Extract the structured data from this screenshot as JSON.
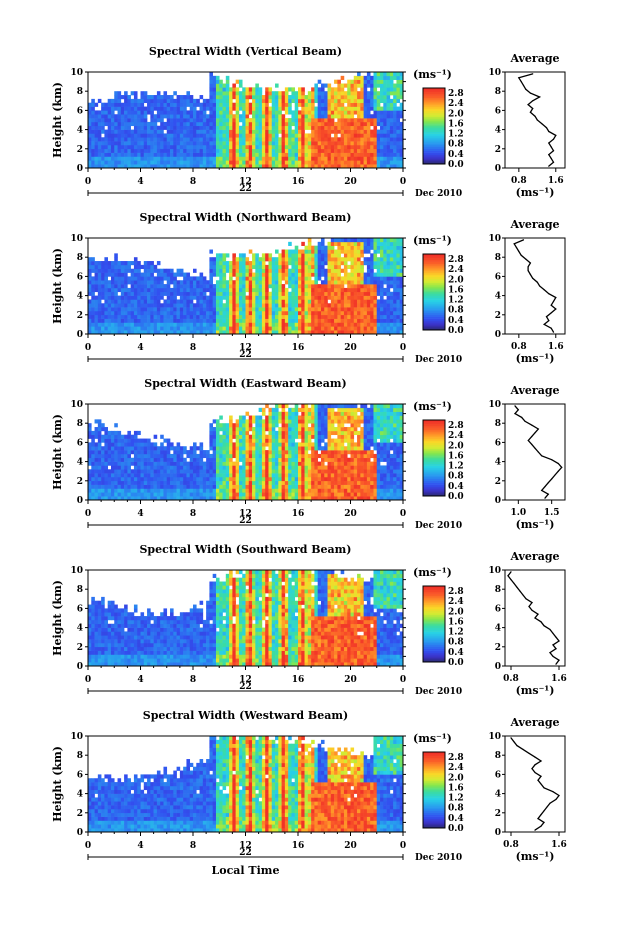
{
  "chart_data": [
    {
      "type": "heatmap",
      "title": "Spectral Width (Vertical Beam)",
      "ylabel": "Height (km)",
      "ylim": [
        0,
        10
      ],
      "xlim": [
        0,
        24
      ],
      "x_ticks": [
        "0",
        "4",
        "8",
        "12",
        "16",
        "20",
        "0"
      ],
      "y_ticks": [
        "0",
        "2",
        "4",
        "6",
        "8",
        "10"
      ],
      "date_label": "22",
      "month_label": "Dec 2010",
      "colorbar": {
        "unit": "(ms⁻¹)",
        "ticks": [
          "0.0",
          "0.4",
          "0.8",
          "1.2",
          "1.6",
          "2.0",
          "2.4",
          "2.8"
        ],
        "range": [
          0,
          3.0
        ]
      },
      "average": {
        "title": "Average",
        "xlabel": "(ms⁻¹)",
        "x_ticks": [
          "0.8",
          "1.6"
        ],
        "xlim": [
          0.5,
          1.8
        ],
        "heights": [
          0.2,
          0.6,
          1.0,
          1.4,
          1.8,
          2.2,
          2.6,
          3.0,
          3.4,
          3.8,
          4.2,
          4.6,
          5.0,
          5.4,
          5.8,
          6.2,
          6.6,
          7.0,
          7.4,
          7.8,
          8.2,
          8.6,
          9.0,
          9.4,
          9.8
        ],
        "values": [
          1.45,
          1.55,
          1.5,
          1.45,
          1.55,
          1.5,
          1.45,
          1.55,
          1.6,
          1.45,
          1.4,
          1.3,
          1.2,
          1.15,
          1.05,
          1.1,
          1.0,
          1.1,
          1.25,
          1.05,
          0.95,
          0.9,
          0.85,
          0.8,
          1.1
        ]
      }
    },
    {
      "type": "heatmap",
      "title": "Spectral Width (Northward Beam)",
      "ylabel": "Height (km)",
      "ylim": [
        0,
        10
      ],
      "xlim": [
        0,
        24
      ],
      "x_ticks": [
        "0",
        "4",
        "8",
        "12",
        "16",
        "20",
        "0"
      ],
      "y_ticks": [
        "0",
        "2",
        "4",
        "6",
        "8",
        "10"
      ],
      "date_label": "22",
      "month_label": "Dec 2010",
      "colorbar": {
        "unit": "(ms⁻¹)",
        "ticks": [
          "0.0",
          "0.4",
          "0.8",
          "1.2",
          "1.6",
          "2.0",
          "2.4",
          "2.8"
        ],
        "range": [
          0,
          3.0
        ]
      },
      "average": {
        "title": "Average",
        "xlabel": "(ms⁻¹)",
        "x_ticks": [
          "0.8",
          "1.6"
        ],
        "xlim": [
          0.5,
          1.8
        ],
        "heights": [
          0.2,
          0.6,
          1.0,
          1.4,
          1.8,
          2.2,
          2.6,
          3.0,
          3.4,
          3.8,
          4.2,
          4.6,
          5.0,
          5.4,
          5.8,
          6.2,
          6.6,
          7.0,
          7.4,
          7.8,
          8.2,
          8.6,
          9.0,
          9.4,
          9.8
        ],
        "values": [
          1.55,
          1.5,
          1.35,
          1.45,
          1.4,
          1.5,
          1.6,
          1.5,
          1.55,
          1.6,
          1.45,
          1.35,
          1.25,
          1.2,
          1.1,
          1.05,
          1.0,
          1.0,
          1.05,
          0.95,
          0.85,
          0.8,
          0.75,
          0.7,
          0.9
        ]
      }
    },
    {
      "type": "heatmap",
      "title": "Spectral Width (Eastward Beam)",
      "ylabel": "Height (km)",
      "ylim": [
        0,
        10
      ],
      "xlim": [
        0,
        24
      ],
      "x_ticks": [
        "0",
        "4",
        "8",
        "12",
        "16",
        "20",
        "0"
      ],
      "y_ticks": [
        "0",
        "2",
        "4",
        "6",
        "8",
        "10"
      ],
      "date_label": "22",
      "month_label": "Dec 2010",
      "colorbar": {
        "unit": "(ms⁻¹)",
        "ticks": [
          "0.0",
          "0.4",
          "0.8",
          "1.2",
          "1.6",
          "2.0",
          "2.4",
          "2.8"
        ],
        "range": [
          0,
          3.0
        ]
      },
      "average": {
        "title": "Average",
        "xlabel": "(ms⁻¹)",
        "x_ticks": [
          "1.0",
          "1.5"
        ],
        "xlim": [
          0.8,
          1.7
        ],
        "heights": [
          0.2,
          0.6,
          1.0,
          1.4,
          1.8,
          2.2,
          2.6,
          3.0,
          3.4,
          3.8,
          4.2,
          4.6,
          5.0,
          5.4,
          5.8,
          6.2,
          6.6,
          7.0,
          7.4,
          7.8,
          8.2,
          8.6,
          9.0,
          9.4,
          9.8
        ],
        "values": [
          1.4,
          1.45,
          1.35,
          1.4,
          1.45,
          1.5,
          1.55,
          1.6,
          1.65,
          1.6,
          1.5,
          1.35,
          1.3,
          1.25,
          1.2,
          1.15,
          1.2,
          1.25,
          1.3,
          1.2,
          1.1,
          1.05,
          0.95,
          1.0,
          0.95
        ]
      }
    },
    {
      "type": "heatmap",
      "title": "Spectral Width (Southward Beam)",
      "ylabel": "Height (km)",
      "ylim": [
        0,
        10
      ],
      "xlim": [
        0,
        24
      ],
      "x_ticks": [
        "0",
        "4",
        "8",
        "12",
        "16",
        "20",
        "0"
      ],
      "y_ticks": [
        "0",
        "2",
        "4",
        "6",
        "8",
        "10"
      ],
      "date_label": "22",
      "month_label": "Dec 2010",
      "colorbar": {
        "unit": "(ms⁻¹)",
        "ticks": [
          "0.0",
          "0.4",
          "0.8",
          "1.2",
          "1.6",
          "2.0",
          "2.4",
          "2.8"
        ],
        "range": [
          0,
          3.0
        ]
      },
      "average": {
        "title": "Average",
        "xlabel": "(ms⁻¹)",
        "x_ticks": [
          "0.8",
          "1.6"
        ],
        "xlim": [
          0.7,
          1.7
        ],
        "heights": [
          0.2,
          0.6,
          1.0,
          1.4,
          1.8,
          2.2,
          2.6,
          3.0,
          3.4,
          3.8,
          4.2,
          4.6,
          5.0,
          5.4,
          5.8,
          6.2,
          6.6,
          7.0,
          7.4,
          7.8,
          8.2,
          8.6,
          9.0,
          9.4,
          9.8
        ],
        "values": [
          1.55,
          1.6,
          1.5,
          1.45,
          1.55,
          1.5,
          1.6,
          1.55,
          1.5,
          1.45,
          1.35,
          1.3,
          1.2,
          1.25,
          1.15,
          1.1,
          1.15,
          1.05,
          1.0,
          0.95,
          0.9,
          0.85,
          0.8,
          0.75,
          0.8
        ]
      }
    },
    {
      "type": "heatmap",
      "title": "Spectral Width (Westward Beam)",
      "ylabel": "Height (km)",
      "ylim": [
        0,
        10
      ],
      "xlim": [
        0,
        24
      ],
      "x_ticks": [
        "0",
        "4",
        "8",
        "12",
        "16",
        "20",
        "0"
      ],
      "y_ticks": [
        "0",
        "2",
        "4",
        "6",
        "8",
        "10"
      ],
      "date_label": "22",
      "month_label": "Dec 2010",
      "xlabel": "Local Time",
      "colorbar": {
        "unit": "(ms⁻¹)",
        "ticks": [
          "0.0",
          "0.4",
          "0.8",
          "1.2",
          "1.6",
          "2.0",
          "2.4",
          "2.8"
        ],
        "range": [
          0,
          3.0
        ]
      },
      "average": {
        "title": "Average",
        "xlabel": "(ms⁻¹)",
        "x_ticks": [
          "0.8",
          "1.6"
        ],
        "xlim": [
          0.7,
          1.7
        ],
        "heights": [
          0.2,
          0.6,
          1.0,
          1.4,
          1.8,
          2.2,
          2.6,
          3.0,
          3.4,
          3.8,
          4.2,
          4.6,
          5.0,
          5.4,
          5.8,
          6.2,
          6.6,
          7.0,
          7.4,
          7.8,
          8.2,
          8.6,
          9.0,
          9.4,
          9.8
        ],
        "values": [
          1.2,
          1.3,
          1.35,
          1.25,
          1.3,
          1.35,
          1.4,
          1.45,
          1.55,
          1.6,
          1.5,
          1.35,
          1.3,
          1.25,
          1.3,
          1.2,
          1.15,
          1.2,
          1.3,
          1.2,
          1.1,
          1.0,
          0.9,
          0.85,
          0.8
        ]
      }
    }
  ]
}
